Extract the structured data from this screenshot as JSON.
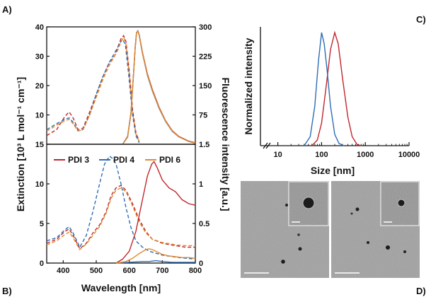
{
  "panel_labels": {
    "a": "A)",
    "b": "B)",
    "c": "C)",
    "d": "D)"
  },
  "colors": {
    "PDI 3": "#c0272d",
    "PDI 4": "#2e6db4",
    "PDI 6": "#e08a2c"
  },
  "chart_data": [
    {
      "id": "A",
      "type": "line",
      "title": "",
      "xlabel": "",
      "ylabel_left": "",
      "ylabel_right": "",
      "xlim": [
        350,
        800
      ],
      "ylim_left": [
        0,
        40
      ],
      "ylim_right": [
        0,
        300
      ],
      "yticks_left": [
        "0",
        "10",
        "20",
        "30",
        "40"
      ],
      "yticks_right": [
        "0",
        "75",
        "150",
        "225",
        "300"
      ],
      "grid": false,
      "series": [
        {
          "name": "PDI 3",
          "style": "dashed",
          "x": [
            350,
            380,
            405,
            418,
            430,
            445,
            460,
            480,
            500,
            520,
            540,
            555,
            565,
            575,
            583,
            590,
            600,
            610,
            620,
            630
          ],
          "values": [
            3,
            5,
            9.5,
            11,
            9,
            5,
            5.5,
            11,
            17,
            23,
            28,
            30,
            33,
            36,
            37,
            35,
            25,
            12,
            4,
            1
          ]
        },
        {
          "name": "PDI 4",
          "style": "dashed",
          "x": [
            350,
            380,
            405,
            418,
            430,
            445,
            460,
            480,
            500,
            520,
            540,
            555,
            565,
            575,
            580,
            588,
            598,
            610,
            620,
            630
          ],
          "values": [
            5,
            7,
            8.5,
            9,
            7.5,
            4.5,
            5,
            10,
            17,
            23,
            28,
            31,
            33,
            35,
            35.8,
            34,
            24,
            10,
            3,
            0.5
          ]
        },
        {
          "name": "PDI 6",
          "style": "dashed",
          "x": [
            350,
            380,
            405,
            418,
            430,
            445,
            460,
            480,
            500,
            520,
            540,
            555,
            565,
            575,
            583,
            590,
            600,
            610,
            620,
            630
          ],
          "values": [
            4.5,
            6.5,
            8,
            8.5,
            7,
            4.5,
            5,
            10,
            16,
            22,
            27,
            30,
            32,
            35,
            36.5,
            34,
            24,
            11,
            3.5,
            1
          ]
        },
        {
          "name": "PDI 3",
          "style": "solid",
          "axis": "right",
          "x": [
            580,
            595,
            605,
            612,
            618,
            622,
            626,
            630,
            640,
            655,
            670,
            690,
            710,
            730,
            750,
            780,
            800
          ],
          "values": [
            0,
            20,
            80,
            170,
            250,
            285,
            290,
            280,
            235,
            180,
            140,
            95,
            60,
            35,
            20,
            8,
            4
          ]
        },
        {
          "name": "PDI 4",
          "style": "solid",
          "axis": "right",
          "x": [
            580,
            595,
            605,
            612,
            618,
            622,
            626,
            630,
            640,
            655,
            670,
            690,
            710,
            730,
            750,
            780,
            800
          ],
          "values": [
            0,
            18,
            78,
            168,
            248,
            284,
            289,
            278,
            232,
            176,
            136,
            92,
            58,
            33,
            19,
            7,
            3
          ]
        },
        {
          "name": "PDI 6",
          "style": "solid",
          "axis": "right",
          "x": [
            580,
            595,
            605,
            612,
            618,
            622,
            626,
            630,
            640,
            655,
            670,
            690,
            710,
            730,
            750,
            780,
            800
          ],
          "values": [
            0,
            19,
            79,
            169,
            249,
            285,
            289,
            279,
            233,
            178,
            138,
            93,
            59,
            34,
            19,
            7,
            3
          ]
        }
      ]
    },
    {
      "id": "B",
      "type": "line",
      "title": "",
      "xlabel": "Wavelength [nm]",
      "ylabel_left": "Extinction [10³ L mol⁻¹ cm⁻¹]",
      "ylabel_right": "Fluorescence intensity [a.u.]",
      "xlim": [
        350,
        800
      ],
      "ylim_left": [
        0,
        15
      ],
      "ylim_right": [
        0,
        1.5
      ],
      "xticks": [
        "400",
        "500",
        "600",
        "700",
        "800"
      ],
      "yticks_left": [
        "0",
        "5",
        "10",
        "15"
      ],
      "yticks_right": [
        "0",
        "0.5",
        "1",
        "1.5"
      ],
      "legend": {
        "placement": "top",
        "entries": [
          "PDI 3",
          "PDI 4",
          "PDI 6"
        ]
      },
      "grid": false,
      "series": [
        {
          "name": "PDI 3",
          "style": "dashed",
          "x": [
            350,
            380,
            405,
            418,
            430,
            450,
            470,
            490,
            510,
            530,
            545,
            560,
            575,
            590,
            610,
            630,
            650,
            670,
            700,
            740,
            770,
            800
          ],
          "values": [
            2.5,
            3,
            4,
            4.3,
            3.5,
            1.8,
            2.5,
            3.8,
            4.8,
            6.5,
            8.5,
            9.5,
            9.8,
            9.2,
            7.5,
            5.5,
            4,
            3,
            2.5,
            2.2,
            2,
            2
          ]
        },
        {
          "name": "PDI 4",
          "style": "dashed",
          "x": [
            350,
            380,
            405,
            418,
            430,
            450,
            470,
            490,
            510,
            525,
            540,
            550,
            560,
            575,
            590,
            605,
            620,
            640,
            660,
            700,
            750,
            800
          ],
          "values": [
            2.8,
            3.2,
            4.2,
            4.6,
            3.8,
            2,
            3.5,
            6.5,
            10,
            12.5,
            13.5,
            13.2,
            12.5,
            10,
            7,
            4.5,
            2.8,
            2,
            1.5,
            1,
            0.7,
            0.5
          ]
        },
        {
          "name": "PDI 6",
          "style": "dashed",
          "x": [
            350,
            380,
            405,
            418,
            430,
            450,
            470,
            490,
            510,
            530,
            545,
            560,
            575,
            590,
            610,
            630,
            650,
            670,
            700,
            740,
            770,
            800
          ],
          "values": [
            2.3,
            2.8,
            3.6,
            3.9,
            3.2,
            1.7,
            2.4,
            3.5,
            4.6,
            6.3,
            8.2,
            9.2,
            9.5,
            9,
            7.2,
            5.2,
            3.8,
            3,
            2.6,
            2.3,
            2.2,
            2.2
          ]
        },
        {
          "name": "PDI 3",
          "style": "solid",
          "axis": "right",
          "x": [
            560,
            580,
            600,
            620,
            640,
            655,
            668,
            675,
            685,
            700,
            720,
            740,
            760,
            780,
            800
          ],
          "values": [
            0,
            0.05,
            0.15,
            0.4,
            0.8,
            1.1,
            1.25,
            1.28,
            1.2,
            1.05,
            0.95,
            0.9,
            0.8,
            0.75,
            0.73
          ]
        },
        {
          "name": "PDI 4",
          "style": "solid",
          "axis": "right",
          "x": [
            560,
            600,
            640,
            660,
            680,
            700,
            730,
            760,
            800
          ],
          "values": [
            0,
            0.01,
            0.02,
            0.02,
            0.03,
            0.02,
            0.01,
            0.01,
            0.01
          ]
        },
        {
          "name": "PDI 6",
          "style": "solid",
          "axis": "right",
          "x": [
            560,
            590,
            610,
            630,
            650,
            660,
            670,
            685,
            700,
            720,
            740,
            760,
            780,
            800
          ],
          "values": [
            0,
            0.02,
            0.06,
            0.12,
            0.17,
            0.18,
            0.17,
            0.14,
            0.11,
            0.09,
            0.08,
            0.07,
            0.07,
            0.06
          ]
        }
      ]
    },
    {
      "id": "C",
      "type": "line",
      "title": "",
      "xlabel": "Size [nm]",
      "ylabel": "Normalized intensity",
      "xscale": "log",
      "xlim": [
        4,
        10000
      ],
      "ylim": [
        0,
        1.05
      ],
      "xticks": [
        "10",
        "100",
        "1000",
        "10000"
      ],
      "grid": false,
      "series": [
        {
          "name": "PDI 3",
          "x": [
            60,
            80,
            100,
            130,
            160,
            200,
            240,
            300,
            400,
            500,
            650,
            800
          ],
          "values": [
            0,
            0.05,
            0.2,
            0.55,
            0.85,
            1.0,
            0.9,
            0.6,
            0.25,
            0.08,
            0.01,
            0
          ]
        },
        {
          "name": "PDI 4",
          "x": [
            40,
            55,
            70,
            85,
            100,
            115,
            135,
            160,
            200,
            250,
            320
          ],
          "values": [
            0,
            0.08,
            0.35,
            0.75,
            1.0,
            0.9,
            0.65,
            0.35,
            0.1,
            0.02,
            0
          ]
        }
      ]
    }
  ]
}
